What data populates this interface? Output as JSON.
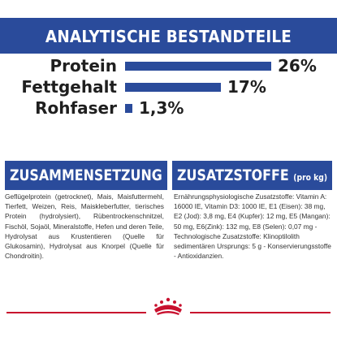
{
  "header": {
    "title": "ANALYTISCHE BESTANDTEILE"
  },
  "chart_data": {
    "type": "bar",
    "categories": [
      "Protein",
      "Fettgehalt",
      "Rohfaser"
    ],
    "values": [
      26,
      17,
      1.3
    ],
    "value_labels": [
      "26%",
      "17%",
      "1,3%"
    ],
    "unit": "%",
    "title": "ANALYTISCHE BESTANDTEILE",
    "xlabel": "",
    "ylabel": "",
    "xlim": [
      0,
      26
    ],
    "orientation": "horizontal",
    "grid": false,
    "legend": "none"
  },
  "composition": {
    "title": "ZUSAMMENSETZUNG",
    "text": "Geflügelprotein (getrocknet), Mais, Maisfuttermehl, Tierfett, Weizen, Reis, Maiskleberfutter, tierisches Protein (hydrolysiert), Rübentrockenschnitzel, Fischöl, Sojaöl, Mineralstoffe, Hefen und deren Teile, Hydrolysat aus Krustentieren (Quelle für Glukosamin), Hydrolysat aus Knorpel (Quelle für Chondroitin)."
  },
  "additives": {
    "title": "ZUSATZSTOFFE",
    "subtitle": "(pro kg)",
    "text": "Ernährungsphysiologische Zusatzstoffe: Vitamin A: 16000 IE, Vitamin D3: 1000 IE, E1 (Eisen): 38 mg, E2 (Jod): 3,8 mg, E4 (Kupfer): 12 mg, E5 (Mangan): 50 mg, E6(Zink): 132 mg, E8 (Selen): 0,07 mg - Technologische Zusatzstoffe: Klinoptilolith sedimentären Ursprungs: 5 g - Konservierungsstoffe - Antioxidanzien."
  },
  "colors": {
    "brand_blue": "#2a4b9b",
    "brand_red": "#c8102e",
    "text_dark": "#1f1f1f",
    "text_body": "#333333"
  },
  "footer": {
    "logo_icon": "royal-canin-crown-icon"
  }
}
